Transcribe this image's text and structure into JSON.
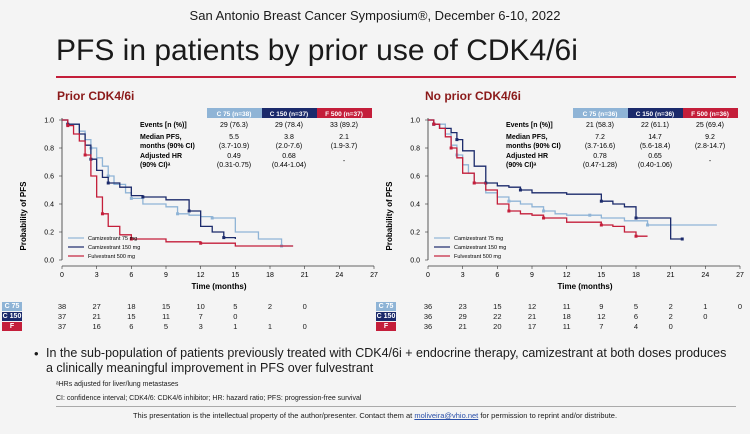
{
  "header": "San Antonio Breast Cancer Symposium®, December 6-10, 2022",
  "title": "PFS in patients by prior use of CDK4/6i",
  "colors": {
    "c75": "#8fb4d6",
    "c150": "#1b2a6b",
    "f500": "#c41e3a",
    "accent": "#c41e3a"
  },
  "axis": {
    "ylabel": "Probability of PFS",
    "xlabel": "Time (months)",
    "xticks": [
      "0",
      "3",
      "6",
      "9",
      "12",
      "15",
      "18",
      "21",
      "24",
      "27"
    ],
    "yticks": [
      "0.0",
      "0.2",
      "0.4",
      "0.6",
      "0.8",
      "1.0"
    ]
  },
  "table_headers": {
    "c75": "C 75 (n=38)",
    "c150": "C 150 (n=37)",
    "f500": "F 500 (n=37)"
  },
  "table_headers_right": {
    "c75": "C 75 (n=36)",
    "c150": "C 150 (n=36)",
    "f500": "F 500 (n=36)"
  },
  "row_labels": {
    "events": "Events [n (%)]",
    "mpfs1": "Median PFS,",
    "mpfs2": "months (90% CI)",
    "hr1": "Adjusted HR",
    "hr2": "(90% CI)ᵃ"
  },
  "legend": {
    "c75": "Camizestrant 75 mg",
    "c150": "Camizestrant 150 mg",
    "f500": "Fulvestrant 500 mg"
  },
  "risk_labels": {
    "c75": "C 75",
    "c150": "C 150",
    "f500": "F"
  },
  "panels": [
    {
      "title": "Prior CDK4/6i",
      "events": [
        "29 (76.3)",
        "29 (78.4)",
        "33 (89.2)"
      ],
      "mpfs": [
        "5.5",
        "3.8",
        "2.1"
      ],
      "mpfs_ci": [
        "(3.7-10.9)",
        "(2.0-7.6)",
        "(1.9-3.7)"
      ],
      "hr": [
        "0.49",
        "0.68",
        "-"
      ],
      "hr_ci": [
        "(0.31-0.75)",
        "(0.44-1.04)",
        ""
      ],
      "risk": {
        "c75": [
          "38",
          "27",
          "18",
          "15",
          "10",
          "5",
          "2",
          "0"
        ],
        "c150": [
          "37",
          "21",
          "15",
          "11",
          "7",
          "0",
          "",
          ""
        ],
        "f500": [
          "37",
          "16",
          "6",
          "5",
          "3",
          "1",
          "1",
          "0"
        ]
      }
    },
    {
      "title": "No prior CDK4/6i",
      "events": [
        "21 (58.3)",
        "22 (61.1)",
        "25 (69.4)"
      ],
      "mpfs": [
        "7.2",
        "14.7",
        "9.2"
      ],
      "mpfs_ci": [
        "(3.7-16.6)",
        "(5.6-18.4)",
        "(2.8-14.7)"
      ],
      "hr": [
        "0.78",
        "0.65",
        "-"
      ],
      "hr_ci": [
        "(0.47-1.28)",
        "(0.40-1.06)",
        ""
      ],
      "risk": {
        "c75": [
          "36",
          "23",
          "15",
          "12",
          "11",
          "9",
          "5",
          "2",
          "1",
          "0"
        ],
        "c150": [
          "36",
          "29",
          "22",
          "21",
          "18",
          "12",
          "6",
          "2",
          "0",
          ""
        ],
        "f500": [
          "36",
          "21",
          "20",
          "17",
          "11",
          "7",
          "4",
          "0",
          "",
          ""
        ]
      }
    }
  ],
  "chart_data": [
    {
      "type": "line",
      "title": "Prior CDK4/6i",
      "xlabel": "Time (months)",
      "ylabel": "Probability of PFS",
      "xlim": [
        0,
        27
      ],
      "ylim": [
        0,
        1
      ],
      "series": [
        {
          "name": "Camizestrant 75 mg",
          "x": [
            0,
            0.5,
            1.5,
            2,
            2.5,
            3,
            3.5,
            4,
            4.5,
            5.5,
            6,
            7,
            9,
            10,
            11,
            12,
            13,
            15,
            17,
            19,
            20
          ],
          "y": [
            1.0,
            0.97,
            0.92,
            0.86,
            0.8,
            0.73,
            0.67,
            0.6,
            0.54,
            0.48,
            0.44,
            0.4,
            0.38,
            0.33,
            0.32,
            0.31,
            0.3,
            0.2,
            0.15,
            0.1,
            0.1
          ]
        },
        {
          "name": "Camizestrant 150 mg",
          "x": [
            0,
            0.5,
            1.5,
            2,
            2.5,
            3,
            3.5,
            4,
            5,
            6,
            7,
            8,
            9,
            11,
            12,
            13,
            14,
            15
          ],
          "y": [
            1.0,
            0.97,
            0.9,
            0.82,
            0.72,
            0.64,
            0.59,
            0.55,
            0.52,
            0.46,
            0.45,
            0.45,
            0.43,
            0.35,
            0.24,
            0.2,
            0.16,
            0.15
          ]
        },
        {
          "name": "Fulvestrant 500 mg",
          "x": [
            0,
            0.5,
            1,
            1.5,
            2,
            2.5,
            3,
            3.5,
            4,
            5,
            6,
            8,
            9,
            12,
            15,
            20
          ],
          "y": [
            1.0,
            0.96,
            0.9,
            0.85,
            0.75,
            0.6,
            0.45,
            0.33,
            0.24,
            0.18,
            0.15,
            0.15,
            0.13,
            0.12,
            0.1,
            0.1
          ]
        }
      ]
    },
    {
      "type": "line",
      "title": "No prior CDK4/6i",
      "xlabel": "Time (months)",
      "ylabel": "Probability of PFS",
      "xlim": [
        0,
        27
      ],
      "ylim": [
        0,
        1
      ],
      "series": [
        {
          "name": "Camizestrant 75 mg",
          "x": [
            0,
            0.5,
            1.5,
            2,
            2.5,
            3,
            3.5,
            4,
            5,
            6,
            7,
            8,
            9,
            10,
            11,
            12,
            14,
            15,
            17,
            19,
            22,
            25
          ],
          "y": [
            1.0,
            0.97,
            0.9,
            0.82,
            0.75,
            0.68,
            0.62,
            0.55,
            0.48,
            0.45,
            0.42,
            0.4,
            0.38,
            0.35,
            0.33,
            0.32,
            0.32,
            0.3,
            0.28,
            0.25,
            0.25,
            0.25
          ]
        },
        {
          "name": "Camizestrant 150 mg",
          "x": [
            0,
            0.5,
            1,
            2,
            2.5,
            3,
            4,
            5,
            6,
            7,
            8,
            9,
            12,
            15,
            16,
            17,
            18,
            19,
            21,
            22
          ],
          "y": [
            1.0,
            0.97,
            0.94,
            0.91,
            0.86,
            0.78,
            0.67,
            0.55,
            0.53,
            0.52,
            0.5,
            0.48,
            0.47,
            0.42,
            0.4,
            0.38,
            0.3,
            0.3,
            0.15,
            0.15
          ]
        },
        {
          "name": "Fulvestrant 500 mg",
          "x": [
            0,
            0.5,
            1,
            1.5,
            2,
            2.5,
            3,
            4,
            5,
            6,
            7,
            8,
            9,
            10,
            12,
            14,
            15,
            16,
            17,
            18,
            19
          ],
          "y": [
            1.0,
            0.97,
            0.94,
            0.88,
            0.8,
            0.73,
            0.62,
            0.55,
            0.5,
            0.4,
            0.35,
            0.33,
            0.32,
            0.3,
            0.27,
            0.27,
            0.25,
            0.24,
            0.2,
            0.17,
            0.17
          ]
        }
      ]
    }
  ],
  "bullet": "In the sub-population of patients previously treated with CDK4/6i + endocrine therapy, camizestrant at both doses produces a clinically meaningful improvement in PFS over fulvestrant",
  "footnote1": "ᵃHRs adjusted for liver/lung metastases",
  "footnote2": "CI: confidence interval; CDK4/6: CDK4/6 inhibitor; HR: hazard ratio; PFS: progression-free survival",
  "disclaimer_pre": "This presentation is the intellectual property of the author/presenter. Contact them at ",
  "disclaimer_email": "moliveira@vhio.net",
  "disclaimer_post": " for permission to reprint and/or distribute."
}
